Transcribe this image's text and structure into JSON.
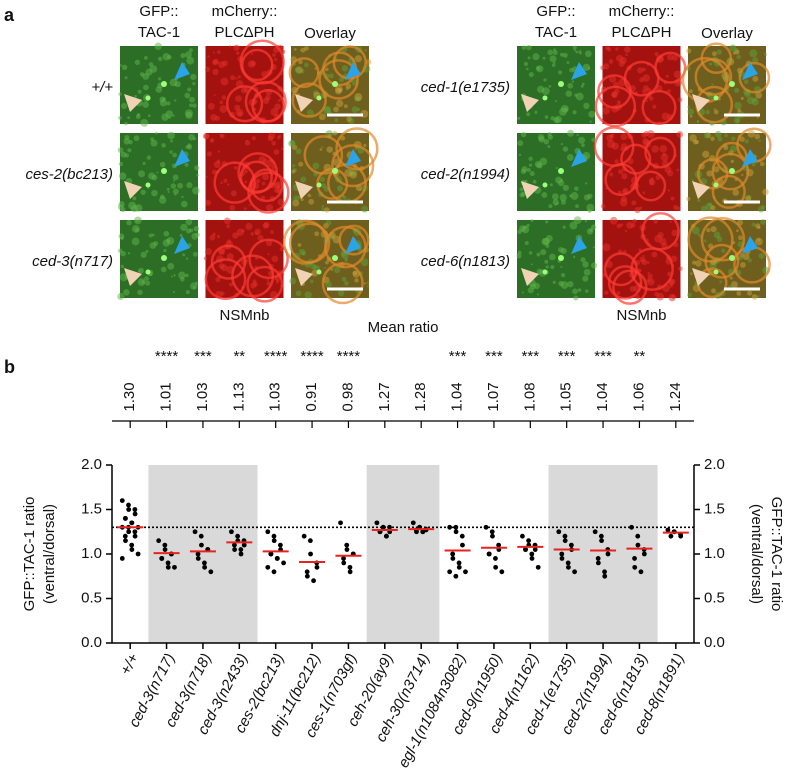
{
  "panel_a": {
    "label": "a",
    "columns": [
      [
        "GFP::",
        "TAC-1"
      ],
      [
        "mCherry::",
        "PLCΔPH"
      ],
      [
        "Overlay"
      ]
    ],
    "left_rows": [
      "+/+",
      "ces-2(bc213)",
      "ced-3(n717)"
    ],
    "right_rows": [
      "ced-1(e1735)",
      "ced-2(n1994)",
      "ced-6(n1813)"
    ],
    "region": "NSMnb"
  },
  "chart_data": {
    "type": "strip",
    "panel_label": "b",
    "title": "Mean ratio",
    "ylabel": [
      "GFP::TAC-1 ratio",
      "(ventral/dorsal)"
    ],
    "categories": [
      "+/+",
      "ced-3(n717)",
      "ced-3(n718)",
      "ced-3(n2433)",
      "ces-2(bc213)",
      "dnj-11(bc212)",
      "ces-1(n703gf)",
      "ceh-20(ay9)",
      "ceh-30(n3714)",
      "egl-1(n1084n3082)",
      "ced-9(n1950)",
      "ced-4(n1162)",
      "ced-1(e1735)",
      "ced-2(n1994)",
      "ced-6(n1813)",
      "ced-8(n1891)"
    ],
    "means": [
      1.3,
      1.01,
      1.03,
      1.13,
      1.03,
      0.91,
      0.98,
      1.27,
      1.28,
      1.04,
      1.07,
      1.08,
      1.05,
      1.04,
      1.06,
      1.24
    ],
    "value_labels": [
      "1.30",
      "1.01",
      "1.03",
      "1.13",
      "1.03",
      "0.91",
      "0.98",
      "1.27",
      "1.28",
      "1.04",
      "1.07",
      "1.08",
      "1.05",
      "1.04",
      "1.06",
      "1.24"
    ],
    "significance": [
      null,
      "****",
      "***",
      "**",
      "****",
      "****",
      "****",
      null,
      null,
      "***",
      "***",
      "***",
      "***",
      "***",
      "**",
      null
    ],
    "points": [
      [
        1.6,
        1.55,
        1.5,
        1.5,
        1.45,
        1.4,
        1.4,
        1.35,
        1.35,
        1.3,
        1.3,
        1.3,
        1.25,
        1.25,
        1.2,
        1.2,
        1.15,
        1.1,
        1.05,
        1.0,
        0.95
      ],
      [
        1.15,
        1.1,
        1.05,
        1.0,
        1.0,
        0.95,
        0.95,
        0.9,
        0.85,
        0.85
      ],
      [
        1.25,
        1.2,
        1.1,
        1.05,
        1.05,
        1.0,
        0.95,
        0.9,
        0.85,
        0.8
      ],
      [
        1.25,
        1.2,
        1.15,
        1.15,
        1.1,
        1.1,
        1.05,
        1.05,
        1.0
      ],
      [
        1.25,
        1.2,
        1.15,
        1.1,
        1.05,
        1.0,
        1.0,
        0.95,
        0.95,
        0.9,
        0.85,
        0.8
      ],
      [
        1.2,
        1.15,
        1.0,
        0.9,
        0.85,
        0.8,
        0.75,
        0.7
      ],
      [
        1.35,
        1.1,
        1.05,
        1.0,
        1.0,
        0.95,
        0.9,
        0.85,
        0.8
      ],
      [
        1.35,
        1.3,
        1.3,
        1.3,
        1.25,
        1.25,
        1.25,
        1.2,
        1.2
      ],
      [
        1.35,
        1.3,
        1.3,
        1.28,
        1.27,
        1.27,
        1.25,
        1.25,
        1.25
      ],
      [
        1.3,
        1.3,
        1.25,
        1.2,
        1.1,
        1.0,
        0.95,
        0.9,
        0.85,
        0.8,
        0.8,
        0.75
      ],
      [
        1.3,
        1.25,
        1.2,
        1.1,
        1.05,
        1.0,
        1.0,
        0.95,
        0.85,
        0.8
      ],
      [
        1.2,
        1.15,
        1.1,
        1.1,
        1.05,
        1.05,
        1.05,
        1.0,
        0.95,
        0.85
      ],
      [
        1.25,
        1.2,
        1.15,
        1.1,
        1.05,
        1.0,
        0.95,
        0.9,
        0.85,
        0.8
      ],
      [
        1.25,
        1.2,
        1.15,
        1.05,
        1.0,
        0.95,
        0.9,
        0.8,
        0.75
      ],
      [
        1.3,
        1.2,
        1.1,
        1.05,
        1.0,
        0.95,
        0.85,
        0.8
      ],
      [
        1.27,
        1.25,
        1.25,
        1.22,
        1.2,
        1.2
      ]
    ],
    "ylim": [
      0,
      2
    ],
    "yticks": [
      {
        "value": 0,
        "label": "0.0"
      },
      {
        "value": 0.5,
        "label": "0.5"
      },
      {
        "value": 1,
        "label": "1.0"
      },
      {
        "value": 1.5,
        "label": "1.5"
      },
      {
        "value": 2,
        "label": "2.0"
      }
    ],
    "point_color": "#000000",
    "mean_color": "#e8231f",
    "reference_line": "dotted"
  }
}
